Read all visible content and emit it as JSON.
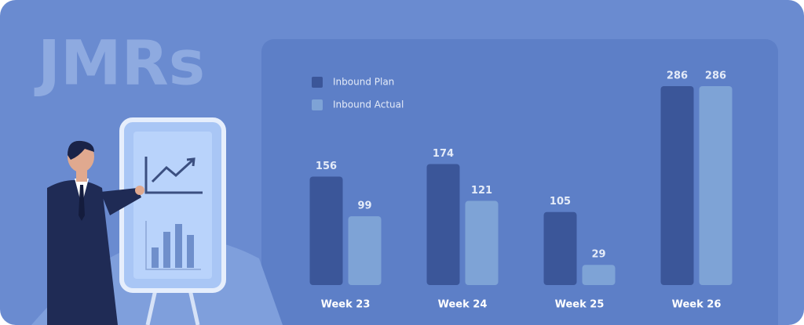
{
  "chart_data": {
    "type": "bar",
    "title": "JMRs",
    "categories": [
      "Week 23",
      "Week 24",
      "Week 25",
      "Week 26"
    ],
    "series": [
      {
        "name": "Inbound Plan",
        "color": "#3b5699",
        "values": [
          156,
          174,
          105,
          286
        ]
      },
      {
        "name": "Inbound Actual",
        "color": "#7ea3d6",
        "values": [
          99,
          121,
          29,
          286
        ]
      }
    ]
  }
}
